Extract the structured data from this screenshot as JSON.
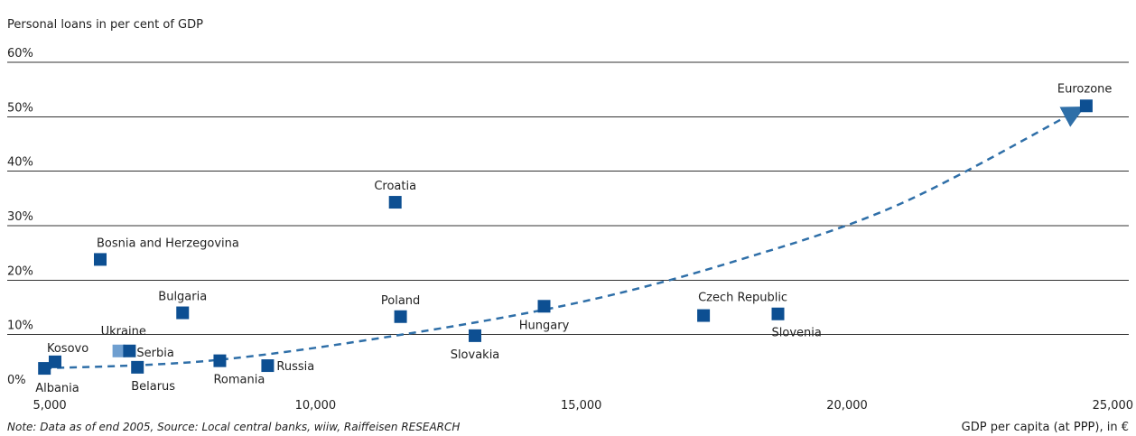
{
  "chart_data": {
    "type": "scatter",
    "title": "Personal loans in per cent of GDP",
    "xlabel": "GDP per capita (at PPP), in €",
    "ylabel": "",
    "note": "Note: Data as of end 2005, Source: Local central banks, wiiw, Raiffeisen RESEARCH",
    "xlim": [
      4200,
      25300
    ],
    "ylim": [
      0,
      60
    ],
    "x_ticks": [
      5000,
      10000,
      15000,
      20000,
      25000
    ],
    "x_tick_labels": [
      "5,000",
      "10,000",
      "15,000",
      "20,000",
      "25,000"
    ],
    "y_ticks": [
      0,
      10,
      20,
      30,
      40,
      50,
      60
    ],
    "y_tick_labels": [
      "0%",
      "10%",
      "20%",
      "30%",
      "40%",
      "50%",
      "60%"
    ],
    "grid": true,
    "points": [
      {
        "label": "Albania",
        "x": 4900,
        "y": 3.8,
        "label_pos": "below-right"
      },
      {
        "label": "Kosovo",
        "x": 5100,
        "y": 5.0,
        "label_pos": "above"
      },
      {
        "label": "Ukraine",
        "x": 6300,
        "y": 7.0,
        "label_pos": "above",
        "color": "#6f9fd0"
      },
      {
        "label": "Serbia",
        "x": 6500,
        "y": 7.0,
        "label_pos": "right"
      },
      {
        "label": "Belarus",
        "x": 6650,
        "y": 4.0,
        "label_pos": "below-right"
      },
      {
        "label": "Bosnia and Herzegovina",
        "x": 5950,
        "y": 23.8,
        "label_pos": "above-right"
      },
      {
        "label": "Bulgaria",
        "x": 7500,
        "y": 14.0,
        "label_pos": "above"
      },
      {
        "label": "Romania",
        "x": 8200,
        "y": 5.2,
        "label_pos": "below-right"
      },
      {
        "label": "Russia",
        "x": 9100,
        "y": 4.3,
        "label_pos": "right"
      },
      {
        "label": "Croatia",
        "x": 11500,
        "y": 34.3,
        "label_pos": "above"
      },
      {
        "label": "Poland",
        "x": 11600,
        "y": 13.3,
        "label_pos": "above"
      },
      {
        "label": "Slovakia",
        "x": 13000,
        "y": 9.8,
        "label_pos": "below"
      },
      {
        "label": "Hungary",
        "x": 14300,
        "y": 15.2,
        "label_pos": "below"
      },
      {
        "label": "Czech Republic",
        "x": 17300,
        "y": 13.5,
        "label_pos": "above"
      },
      {
        "label": "Slovenia",
        "x": 18700,
        "y": 13.8,
        "label_pos": "below"
      },
      {
        "label": "Eurozone",
        "x": 24500,
        "y": 52.0,
        "label_pos": "above"
      }
    ],
    "trendline": {
      "style": "dashed",
      "arrow": "end",
      "points": [
        [
          4900,
          3.8
        ],
        [
          8000,
          5.2
        ],
        [
          11500,
          9.8
        ],
        [
          15000,
          16.0
        ],
        [
          18000,
          23.8
        ],
        [
          21000,
          34.0
        ],
        [
          24400,
          51.5
        ]
      ]
    },
    "colors": {
      "marker": "#0d4f92",
      "trend": "#2f6fa8",
      "grid": "#333333",
      "text": "#222222"
    }
  }
}
